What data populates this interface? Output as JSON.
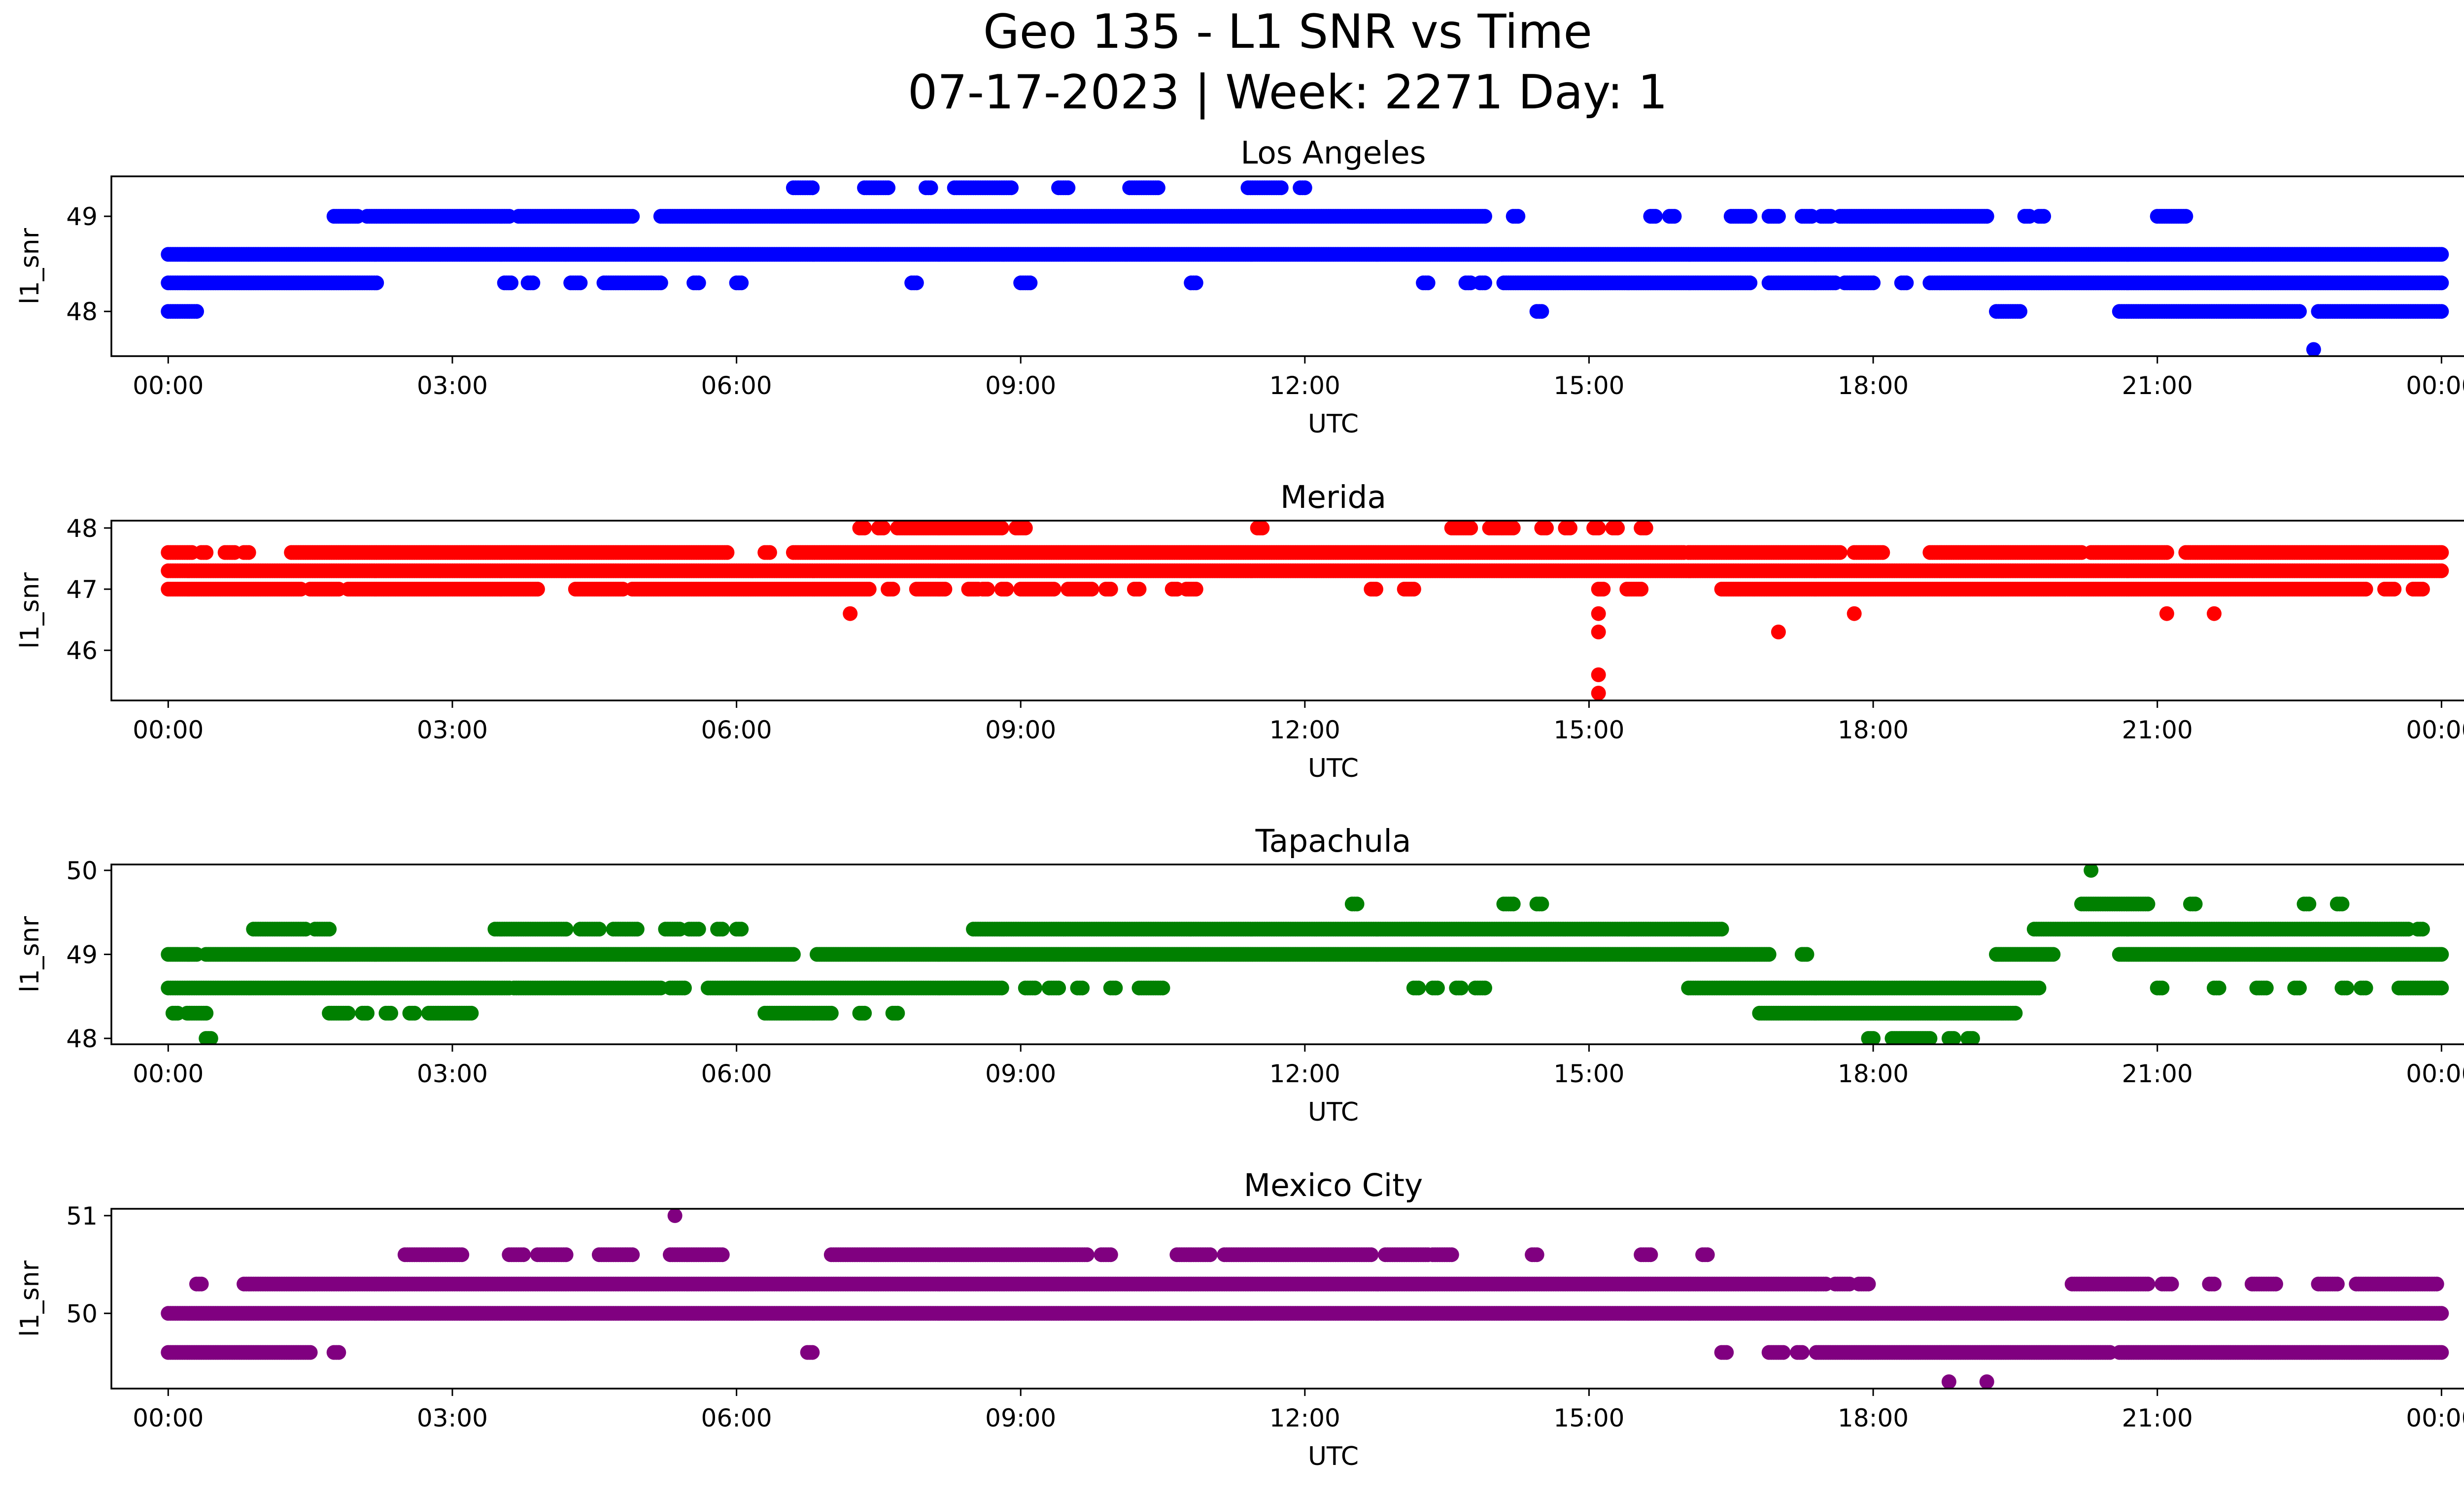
{
  "figure": {
    "title_line1": "Geo 135 - L1 SNR vs Time",
    "title_line2": "07-17-2023 | Week: 2271 Day: 1"
  },
  "chart_data": [
    {
      "type": "scatter",
      "title": "Los Angeles",
      "color": "#0000ff",
      "xlabel": "UTC",
      "ylabel": "l1_snr",
      "xlim_hours": [
        -0.6,
        25.2
      ],
      "ylim": [
        47.53,
        49.42
      ],
      "xticks": [
        "00:00",
        "03:00",
        "06:00",
        "09:00",
        "12:00",
        "15:00",
        "18:00",
        "21:00",
        "00:00"
      ],
      "yticks": [
        48,
        49
      ],
      "levels": [
        {
          "y": 48.6,
          "segments": [
            [
              0.0,
              24.0
            ]
          ]
        },
        {
          "y": 48.3,
          "segments": [
            [
              0.0,
              2.2
            ],
            [
              3.55,
              3.62
            ],
            [
              3.8,
              3.85
            ],
            [
              4.25,
              4.35
            ],
            [
              4.6,
              5.2
            ],
            [
              5.55,
              5.6
            ],
            [
              6.0,
              6.05
            ],
            [
              7.85,
              7.9
            ],
            [
              9.0,
              9.1
            ],
            [
              10.8,
              10.85
            ],
            [
              13.25,
              13.3
            ],
            [
              13.7,
              13.75
            ],
            [
              13.85,
              13.9
            ],
            [
              14.1,
              16.7
            ],
            [
              16.9,
              17.6
            ],
            [
              17.7,
              18.0
            ],
            [
              18.3,
              18.35
            ],
            [
              18.6,
              24.0
            ]
          ]
        },
        {
          "y": 49.0,
          "segments": [
            [
              1.75,
              2.0
            ],
            [
              2.1,
              3.6
            ],
            [
              3.7,
              4.9
            ],
            [
              5.2,
              13.9
            ],
            [
              14.2,
              14.25
            ],
            [
              15.65,
              15.7
            ],
            [
              15.85,
              15.9
            ],
            [
              16.5,
              16.7
            ],
            [
              16.9,
              17.0
            ],
            [
              17.25,
              17.35
            ],
            [
              17.45,
              17.55
            ],
            [
              17.65,
              19.2
            ],
            [
              19.6,
              19.65
            ],
            [
              19.75,
              19.8
            ],
            [
              21.0,
              21.3
            ]
          ]
        },
        {
          "y": 48.0,
          "segments": [
            [
              0.0,
              0.3
            ],
            [
              14.45,
              14.5
            ],
            [
              19.3,
              19.55
            ],
            [
              20.6,
              22.5
            ],
            [
              22.7,
              24.0
            ]
          ]
        },
        {
          "y": 49.3,
          "segments": [
            [
              6.6,
              6.8
            ],
            [
              7.35,
              7.6
            ],
            [
              8.0,
              8.05
            ],
            [
              8.3,
              8.9
            ],
            [
              9.4,
              9.5
            ],
            [
              10.15,
              10.45
            ],
            [
              11.4,
              11.75
            ],
            [
              11.95,
              12.0
            ]
          ]
        }
      ],
      "points": [
        [
          22.65,
          47.6
        ]
      ]
    },
    {
      "type": "scatter",
      "title": "Merida",
      "color": "#ff0000",
      "xlabel": "UTC",
      "ylabel": "l1_snr",
      "xlim_hours": [
        -0.6,
        25.2
      ],
      "ylim": [
        45.18,
        48.12
      ],
      "xticks": [
        "00:00",
        "03:00",
        "06:00",
        "09:00",
        "12:00",
        "15:00",
        "18:00",
        "21:00",
        "00:00"
      ],
      "yticks": [
        46,
        47,
        48
      ],
      "levels": [
        {
          "y": 47.3,
          "segments": [
            [
              0.0,
              24.0
            ]
          ]
        },
        {
          "y": 47.6,
          "segments": [
            [
              0.0,
              0.25
            ],
            [
              0.35,
              0.4
            ],
            [
              0.6,
              0.7
            ],
            [
              0.8,
              0.85
            ],
            [
              1.3,
              5.9
            ],
            [
              6.3,
              6.35
            ],
            [
              6.6,
              16.0
            ],
            [
              16.05,
              17.65
            ],
            [
              17.8,
              18.1
            ],
            [
              18.6,
              20.2
            ],
            [
              20.3,
              21.1
            ],
            [
              21.3,
              24.0
            ]
          ]
        },
        {
          "y": 47.0,
          "segments": [
            [
              0.0,
              1.4
            ],
            [
              1.5,
              1.8
            ],
            [
              1.9,
              3.9
            ],
            [
              4.3,
              4.8
            ],
            [
              4.9,
              7.4
            ],
            [
              7.6,
              7.65
            ],
            [
              7.9,
              8.2
            ],
            [
              8.45,
              8.55
            ],
            [
              8.6,
              8.65
            ],
            [
              8.8,
              8.85
            ],
            [
              9.0,
              9.35
            ],
            [
              9.5,
              9.75
            ],
            [
              9.9,
              9.95
            ],
            [
              10.2,
              10.25
            ],
            [
              10.6,
              10.65
            ],
            [
              10.75,
              10.85
            ],
            [
              12.7,
              12.75
            ],
            [
              13.05,
              13.15
            ],
            [
              15.1,
              15.15
            ],
            [
              15.4,
              15.55
            ],
            [
              16.4,
              23.2
            ],
            [
              23.4,
              23.5
            ],
            [
              23.7,
              23.8
            ]
          ]
        },
        {
          "y": 48.0,
          "segments": [
            [
              7.3,
              7.35
            ],
            [
              7.5,
              7.55
            ],
            [
              7.7,
              8.8
            ],
            [
              8.95,
              9.05
            ],
            [
              11.5,
              11.55
            ],
            [
              13.55,
              13.75
            ],
            [
              13.95,
              14.2
            ],
            [
              14.5,
              14.55
            ],
            [
              14.75,
              14.8
            ],
            [
              15.05,
              15.1
            ],
            [
              15.25,
              15.3
            ],
            [
              15.55,
              15.6
            ]
          ]
        }
      ],
      "points": [
        [
          7.2,
          46.6
        ],
        [
          15.1,
          46.6
        ],
        [
          15.1,
          46.3
        ],
        [
          15.1,
          45.6
        ],
        [
          15.1,
          45.3
        ],
        [
          17.0,
          46.3
        ],
        [
          17.8,
          46.6
        ],
        [
          21.1,
          46.6
        ],
        [
          21.6,
          46.6
        ]
      ]
    },
    {
      "type": "scatter",
      "title": "Tapachula",
      "color": "#008000",
      "xlabel": "UTC",
      "ylabel": "l1_snr",
      "xlim_hours": [
        -0.6,
        25.2
      ],
      "ylim": [
        47.93,
        50.07
      ],
      "xticks": [
        "00:00",
        "03:00",
        "06:00",
        "09:00",
        "12:00",
        "15:00",
        "18:00",
        "21:00",
        "00:00"
      ],
      "yticks": [
        48,
        49,
        50
      ],
      "levels": [
        {
          "y": 49.0,
          "segments": [
            [
              0.0,
              0.3
            ],
            [
              0.4,
              6.6
            ],
            [
              6.85,
              16.9
            ],
            [
              17.25,
              17.3
            ],
            [
              19.3,
              19.9
            ],
            [
              20.6,
              24.0
            ]
          ]
        },
        {
          "y": 48.6,
          "segments": [
            [
              0.0,
              3.6
            ],
            [
              3.65,
              5.2
            ],
            [
              5.3,
              5.45
            ],
            [
              5.7,
              8.8
            ],
            [
              9.05,
              9.15
            ],
            [
              9.3,
              9.4
            ],
            [
              9.6,
              9.65
            ],
            [
              9.95,
              10.0
            ],
            [
              10.25,
              10.5
            ],
            [
              13.15,
              13.2
            ],
            [
              13.35,
              13.4
            ],
            [
              13.6,
              13.65
            ],
            [
              13.8,
              13.9
            ],
            [
              16.05,
              19.75
            ],
            [
              21.0,
              21.05
            ],
            [
              21.6,
              21.65
            ],
            [
              22.05,
              22.15
            ],
            [
              22.45,
              22.5
            ],
            [
              22.95,
              23.0
            ],
            [
              23.15,
              23.2
            ],
            [
              23.55,
              24.0
            ]
          ]
        },
        {
          "y": 48.3,
          "segments": [
            [
              0.05,
              0.1
            ],
            [
              0.2,
              0.4
            ],
            [
              1.7,
              1.9
            ],
            [
              2.05,
              2.1
            ],
            [
              2.3,
              2.35
            ],
            [
              2.55,
              2.6
            ],
            [
              2.75,
              3.2
            ],
            [
              6.3,
              7.0
            ],
            [
              7.3,
              7.35
            ],
            [
              7.65,
              7.7
            ],
            [
              16.8,
              19.5
            ]
          ]
        },
        {
          "y": 49.3,
          "segments": [
            [
              0.9,
              1.45
            ],
            [
              1.55,
              1.7
            ],
            [
              3.45,
              4.2
            ],
            [
              4.35,
              4.55
            ],
            [
              4.7,
              4.95
            ],
            [
              5.25,
              5.4
            ],
            [
              5.5,
              5.6
            ],
            [
              5.8,
              5.85
            ],
            [
              6.0,
              6.05
            ],
            [
              8.5,
              16.4
            ],
            [
              19.7,
              23.65
            ],
            [
              23.75,
              23.8
            ]
          ]
        },
        {
          "y": 48.0,
          "segments": [
            [
              0.4,
              0.45
            ],
            [
              17.95,
              18.0
            ],
            [
              18.2,
              18.6
            ],
            [
              18.8,
              18.85
            ],
            [
              19.0,
              19.05
            ]
          ]
        },
        {
          "y": 49.6,
          "segments": [
            [
              12.5,
              12.55
            ],
            [
              14.1,
              14.2
            ],
            [
              14.45,
              14.5
            ],
            [
              20.2,
              20.9
            ],
            [
              21.35,
              21.4
            ],
            [
              22.55,
              22.6
            ],
            [
              22.9,
              22.95
            ]
          ]
        }
      ],
      "points": [
        [
          20.3,
          50.0
        ]
      ]
    },
    {
      "type": "scatter",
      "title": "Mexico City",
      "color": "#800080",
      "xlabel": "UTC",
      "ylabel": "l1_snr",
      "xlim_hours": [
        -0.6,
        25.2
      ],
      "ylim": [
        49.23,
        51.07
      ],
      "xticks": [
        "00:00",
        "03:00",
        "06:00",
        "09:00",
        "12:00",
        "15:00",
        "18:00",
        "21:00",
        "00:00"
      ],
      "yticks": [
        50,
        51
      ],
      "levels": [
        {
          "y": 50.0,
          "segments": [
            [
              0.0,
              24.0
            ]
          ]
        },
        {
          "y": 49.6,
          "segments": [
            [
              0.0,
              1.5
            ],
            [
              1.75,
              1.8
            ],
            [
              6.75,
              6.8
            ],
            [
              16.4,
              16.45
            ],
            [
              16.9,
              17.05
            ],
            [
              17.2,
              17.25
            ],
            [
              17.4,
              20.5
            ],
            [
              20.6,
              24.0
            ]
          ]
        },
        {
          "y": 50.3,
          "segments": [
            [
              0.3,
              0.35
            ],
            [
              0.8,
              17.5
            ],
            [
              17.6,
              17.75
            ],
            [
              17.85,
              17.95
            ],
            [
              20.1,
              20.9
            ],
            [
              21.05,
              21.15
            ],
            [
              21.55,
              21.6
            ],
            [
              22.0,
              22.25
            ],
            [
              22.7,
              22.9
            ],
            [
              23.1,
              23.95
            ]
          ]
        },
        {
          "y": 50.6,
          "segments": [
            [
              2.5,
              3.1
            ],
            [
              3.6,
              3.75
            ],
            [
              3.9,
              4.2
            ],
            [
              4.55,
              4.9
            ],
            [
              5.3,
              5.85
            ],
            [
              7.0,
              9.7
            ],
            [
              9.85,
              9.95
            ],
            [
              10.65,
              11.0
            ],
            [
              11.15,
              12.7
            ],
            [
              12.85,
              13.3
            ],
            [
              13.35,
              13.55
            ],
            [
              14.4,
              14.45
            ],
            [
              15.55,
              15.65
            ],
            [
              16.2,
              16.25
            ]
          ]
        }
      ],
      "points": [
        [
          5.35,
          51.0
        ],
        [
          18.8,
          49.3
        ],
        [
          19.2,
          49.3
        ]
      ]
    }
  ]
}
